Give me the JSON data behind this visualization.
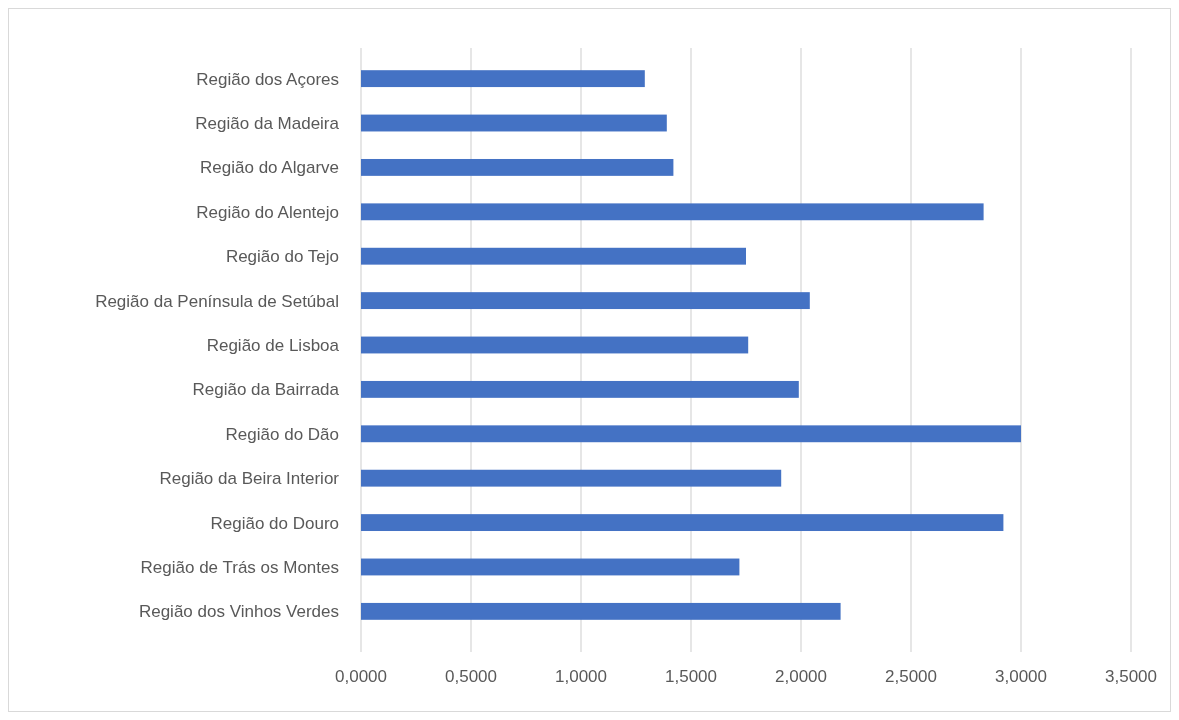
{
  "chart_data": {
    "type": "bar",
    "orientation": "horizontal",
    "categories": [
      "Região dos Açores",
      "Região da Madeira",
      "Região do Algarve",
      "Região do Alentejo",
      "Região do Tejo",
      "Região da Península de Setúbal",
      "Região de Lisboa",
      "Região da Bairrada",
      "Região do Dão",
      "Região da Beira Interior",
      "Região do Douro",
      "Região de Trás os Montes",
      "Região dos Vinhos Verdes"
    ],
    "values": [
      1.29,
      1.39,
      1.42,
      2.83,
      1.75,
      2.04,
      1.76,
      1.99,
      3.0,
      1.91,
      2.92,
      1.72,
      2.18
    ],
    "color": "#4472c4",
    "xlim": [
      0,
      3.5
    ],
    "xticks": [
      {
        "value": 0,
        "label": "0,0000"
      },
      {
        "value": 0.5,
        "label": "0,5000"
      },
      {
        "value": 1,
        "label": "1,0000"
      },
      {
        "value": 1.5,
        "label": "1,5000"
      },
      {
        "value": 2,
        "label": "2,0000"
      },
      {
        "value": 2.5,
        "label": "2,5000"
      },
      {
        "value": 3,
        "label": "3,0000"
      },
      {
        "value": 3.5,
        "label": "3,5000"
      }
    ],
    "grid": "x"
  }
}
